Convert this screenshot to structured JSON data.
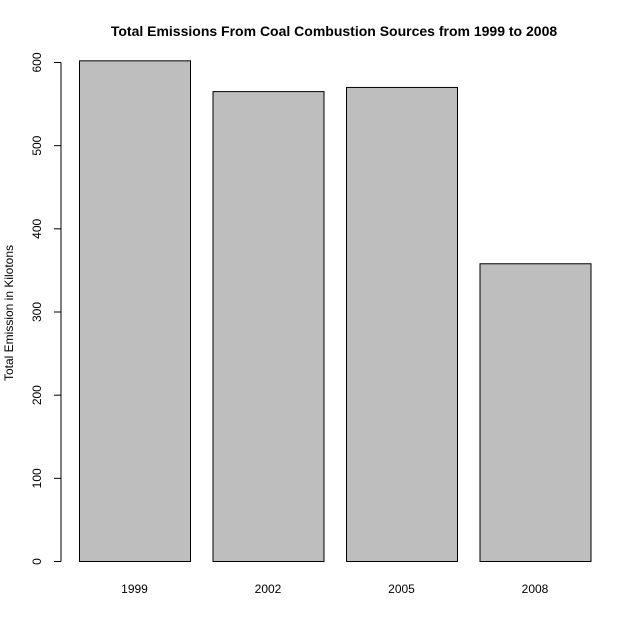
{
  "chart_data": {
    "type": "bar",
    "title": "Total Emissions From Coal Combustion Sources from 1999 to 2008",
    "xlabel": "",
    "ylabel": "Total Emission in Kilotons",
    "categories": [
      "1999",
      "2002",
      "2005",
      "2008"
    ],
    "values": [
      602,
      565,
      570,
      358
    ],
    "ylim": [
      0,
      600
    ],
    "yticks": [
      0,
      100,
      200,
      300,
      400,
      500,
      600
    ],
    "grid": false,
    "legend": "none",
    "bar_color": "#BEBEBE",
    "bar_border_color": "#000000"
  }
}
